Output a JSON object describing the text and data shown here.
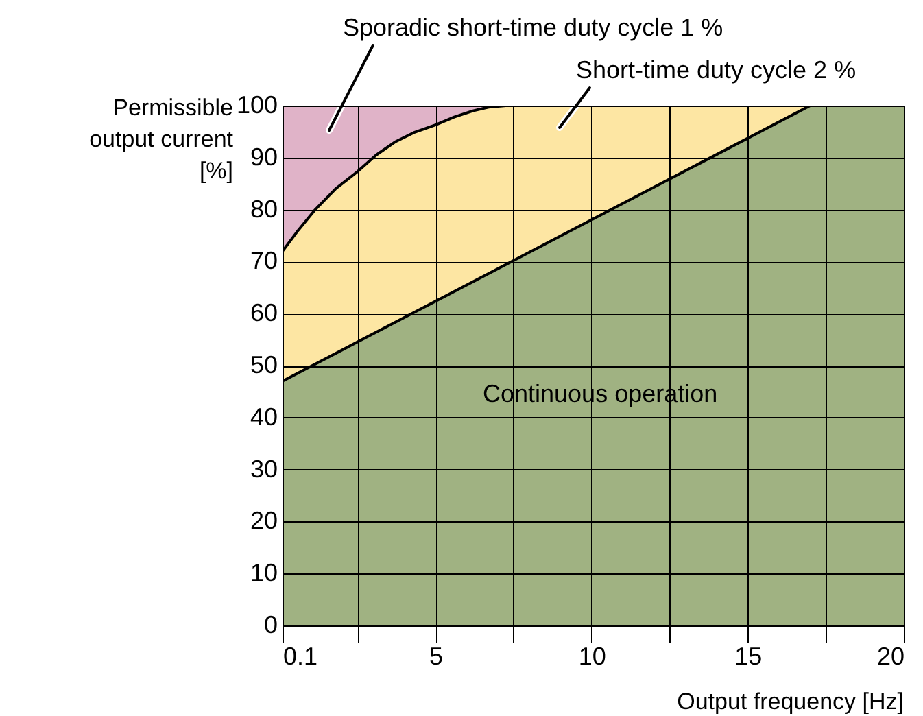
{
  "chart_data": {
    "type": "area",
    "xlabel": "Output frequency [Hz]",
    "ylabel": "Permissible output current [%]",
    "series": [
      {
        "name": "Sporadic short-time duty cycle 1 %",
        "color": "#e0b3c8",
        "x": [
          0.1,
          7.25
        ],
        "values": [
          100,
          100
        ]
      },
      {
        "name": "Short-time duty cycle 2 %",
        "color": "#fde6a3",
        "x": [
          0.1,
          0.6,
          1.15,
          1.8,
          2.5,
          3.1,
          3.7,
          4.3,
          5,
          5.6,
          6.2,
          6.7,
          7.25,
          17
        ],
        "values": [
          72,
          76,
          80,
          84,
          87.3,
          90.5,
          93,
          94.8,
          96.3,
          97.8,
          99,
          99.7,
          100,
          100
        ]
      },
      {
        "name": "Continuous operation",
        "color": "#a0b282",
        "x": [
          0.1,
          17,
          20
        ],
        "values": [
          47,
          100,
          100
        ]
      }
    ],
    "xlim": [
      0.1,
      20
    ],
    "xticks": [
      0.1,
      {
        "value": 2.5,
        "label": null
      },
      5,
      {
        "value": 7.5,
        "label": null
      },
      10,
      {
        "value": 12.5,
        "label": null
      },
      15,
      {
        "value": 17.5,
        "label": null
      },
      20
    ],
    "ylim": [
      0,
      100
    ],
    "yticks": [
      0,
      10,
      20,
      30,
      40,
      50,
      60,
      70,
      80,
      90,
      100
    ],
    "grid": true
  }
}
